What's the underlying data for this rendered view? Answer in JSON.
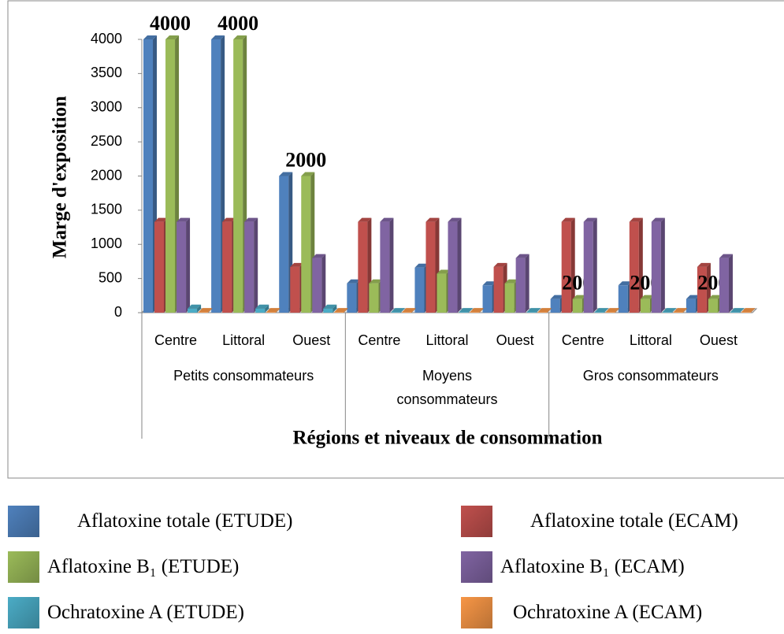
{
  "chart_data": {
    "type": "bar",
    "y_label": "Marge d'exposition",
    "x_label": "Régions et niveaux de consommation",
    "categories": [
      "Centre",
      "Littoral",
      "Ouest",
      "Centre",
      "Littoral",
      "Ouest",
      "Centre",
      "Littoral",
      "Ouest"
    ],
    "groups": [
      "Petits consommateurs",
      "Moyens consommateurs",
      "Gros consommateurs"
    ],
    "series": [
      {
        "name": "Aflatoxine totale (ETUDE)",
        "color": "#4f81bd",
        "values": [
          4000,
          4000,
          2000,
          430,
          660,
          400,
          200,
          400,
          200
        ]
      },
      {
        "name": "Aflatoxine totale (ECAM)",
        "color": "#c0504d",
        "values": [
          1330,
          1330,
          670,
          1330,
          1330,
          670,
          1330,
          1330,
          670
        ]
      },
      {
        "name": "Aflatoxine B₁ (ETUDE)",
        "color": "#9bbb59",
        "values": [
          4000,
          4000,
          2000,
          430,
          570,
          430,
          200,
          200,
          200
        ],
        "value_labels": [
          "4000",
          "4000",
          "2000",
          null,
          null,
          null,
          "200",
          "200",
          "200"
        ]
      },
      {
        "name": "Aflatoxine B₁ (ECAM)",
        "color": "#8064a2",
        "values": [
          1330,
          1330,
          800,
          1330,
          1330,
          800,
          1330,
          1330,
          800
        ]
      },
      {
        "name": "Ochratoxine A (ETUDE)",
        "color": "#4bacc6",
        "values": [
          60,
          60,
          60,
          10,
          10,
          10,
          10,
          10,
          10
        ]
      },
      {
        "name": "Ochratoxine A (ECAM)",
        "color": "#f79646",
        "values": [
          10,
          10,
          10,
          10,
          10,
          10,
          10,
          10,
          10
        ]
      }
    ],
    "ylim": [
      0,
      4000
    ],
    "yticks": [
      0,
      500,
      1000,
      1500,
      2000,
      2500,
      3000,
      3500,
      4000
    ],
    "grid": false
  }
}
